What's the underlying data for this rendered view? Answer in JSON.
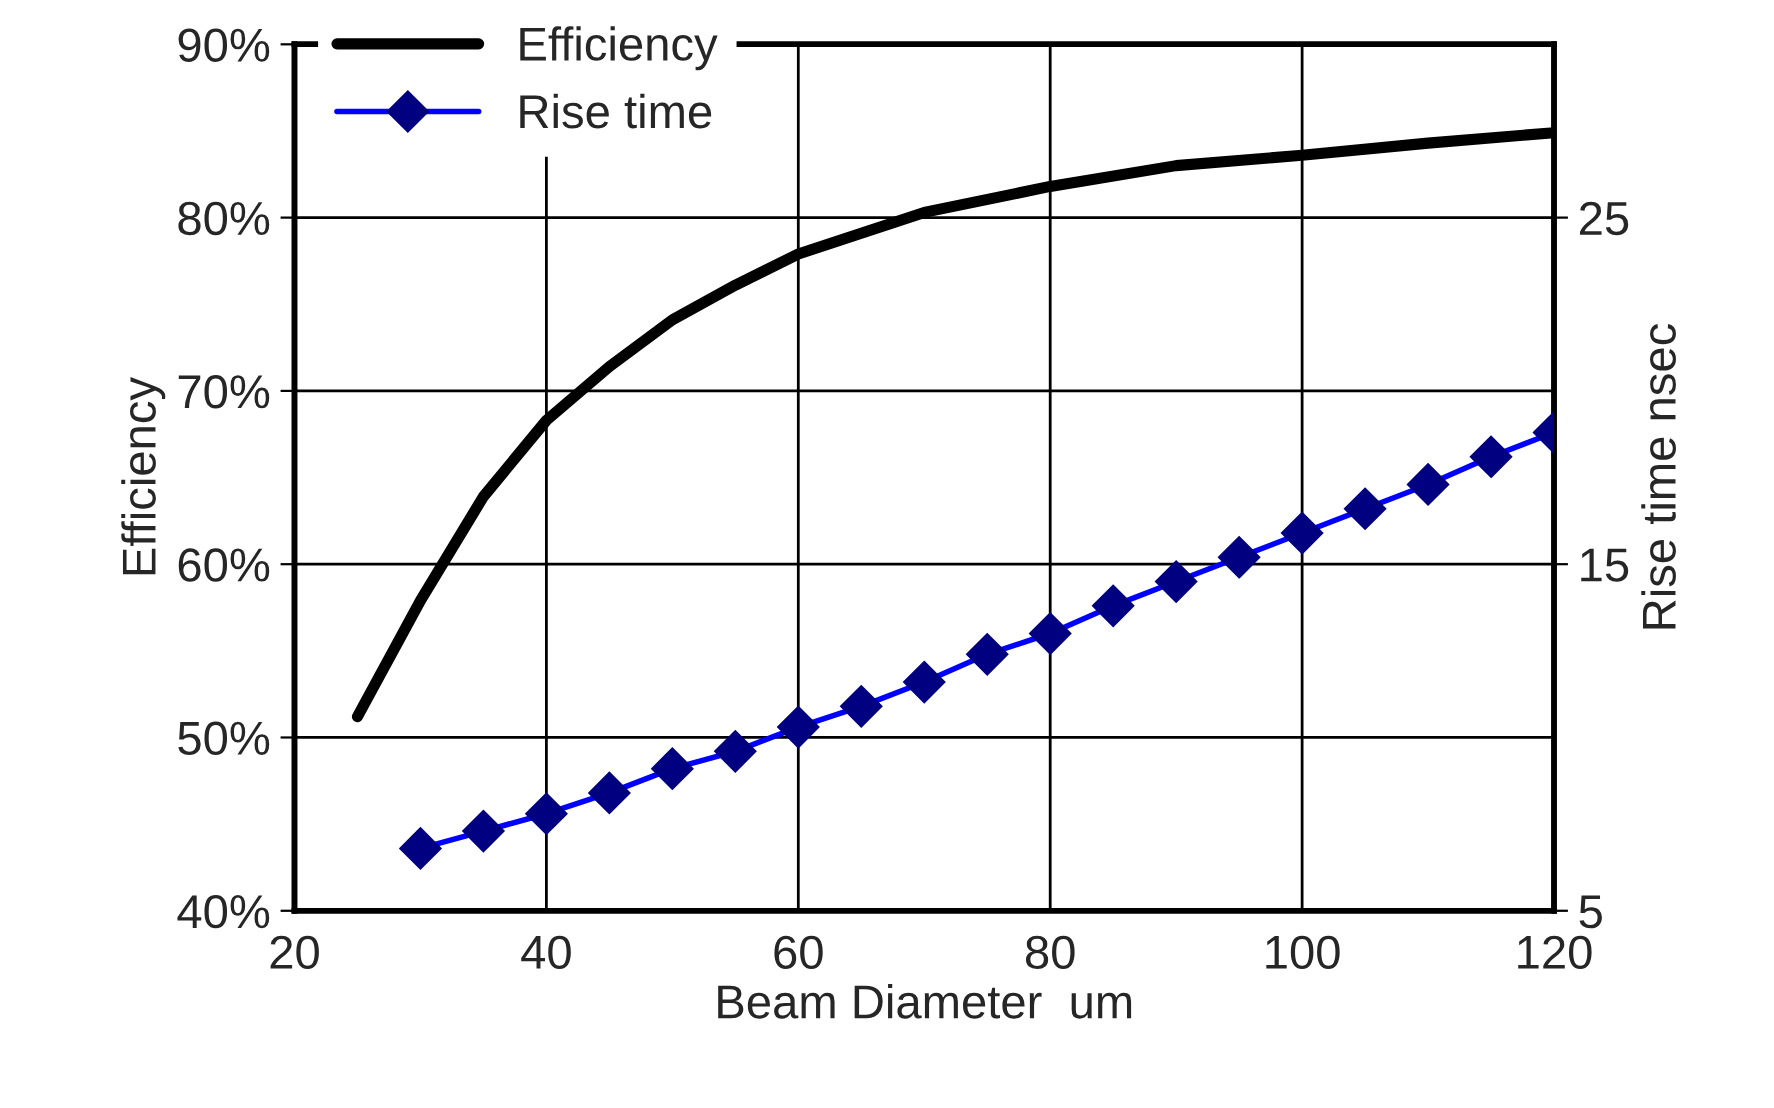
{
  "chart_data": {
    "type": "line",
    "xlabel": "Beam Diameter  um",
    "ylabel": "Efficiency",
    "y2label": "Rise time nsec",
    "xlim": [
      20,
      120
    ],
    "xticks": [
      20,
      40,
      60,
      80,
      100,
      120
    ],
    "ylim": [
      40,
      90
    ],
    "yticks": [
      {
        "value": 40,
        "label": "40%"
      },
      {
        "value": 50,
        "label": "50%"
      },
      {
        "value": 60,
        "label": "60%"
      },
      {
        "value": 70,
        "label": "70%"
      },
      {
        "value": 80,
        "label": "80%"
      },
      {
        "value": 90,
        "label": "90%"
      }
    ],
    "y2lim": [
      5,
      30
    ],
    "y2ticks": [
      5,
      15,
      25
    ],
    "grid": true,
    "legend": "top left",
    "series": [
      {
        "name": "Efficiency",
        "color": "#000000",
        "marker": "none",
        "x": [
          25,
          30,
          35,
          40,
          45,
          50,
          55,
          60,
          65,
          70,
          80,
          90,
          100,
          110,
          120
        ],
        "values": [
          51.2,
          57.9,
          63.9,
          68.3,
          71.4,
          74.1,
          76.1,
          77.9,
          79.1,
          80.3,
          81.8,
          83.0,
          83.6,
          84.3,
          84.9
        ]
      },
      {
        "name": "Rise time",
        "color": "#0000ff",
        "marker": "diamond",
        "axis": "y2",
        "x": [
          30,
          35,
          40,
          45,
          50,
          55,
          60,
          65,
          70,
          75,
          80,
          85,
          90,
          95,
          100,
          105,
          110,
          115,
          120
        ],
        "values": [
          6.8,
          7.3,
          7.8,
          8.4,
          9.1,
          9.6,
          10.3,
          10.9,
          11.6,
          12.4,
          13.0,
          13.8,
          14.5,
          15.2,
          15.9,
          16.6,
          17.3,
          18.1,
          18.8
        ]
      }
    ]
  }
}
